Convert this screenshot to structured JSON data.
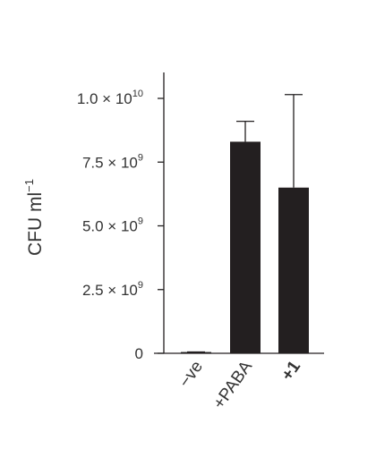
{
  "chart_data": {
    "type": "bar",
    "categories": [
      "−ve",
      "+PABA",
      "+1"
    ],
    "values": [
      50000000,
      8300000000,
      6500000000
    ],
    "error_upper": [
      50000000,
      9100000000,
      10150000000
    ],
    "ylabel": "CFU ml",
    "ylabel_sup": "−1",
    "ylim": [
      0,
      10000000000
    ],
    "yticks": [
      {
        "value": 0,
        "mantissa": "0",
        "exponent": ""
      },
      {
        "value": 2500000000,
        "mantissa": "2.5 × 10",
        "exponent": "9"
      },
      {
        "value": 5000000000,
        "mantissa": "5.0 × 10",
        "exponent": "9"
      },
      {
        "value": 7500000000,
        "mantissa": "7.5 × 10",
        "exponent": "9"
      },
      {
        "value": 10000000000,
        "mantissa": "1.0 × 10",
        "exponent": "10"
      }
    ],
    "bar_color": "#231f20",
    "grid": false,
    "legend": "none"
  }
}
